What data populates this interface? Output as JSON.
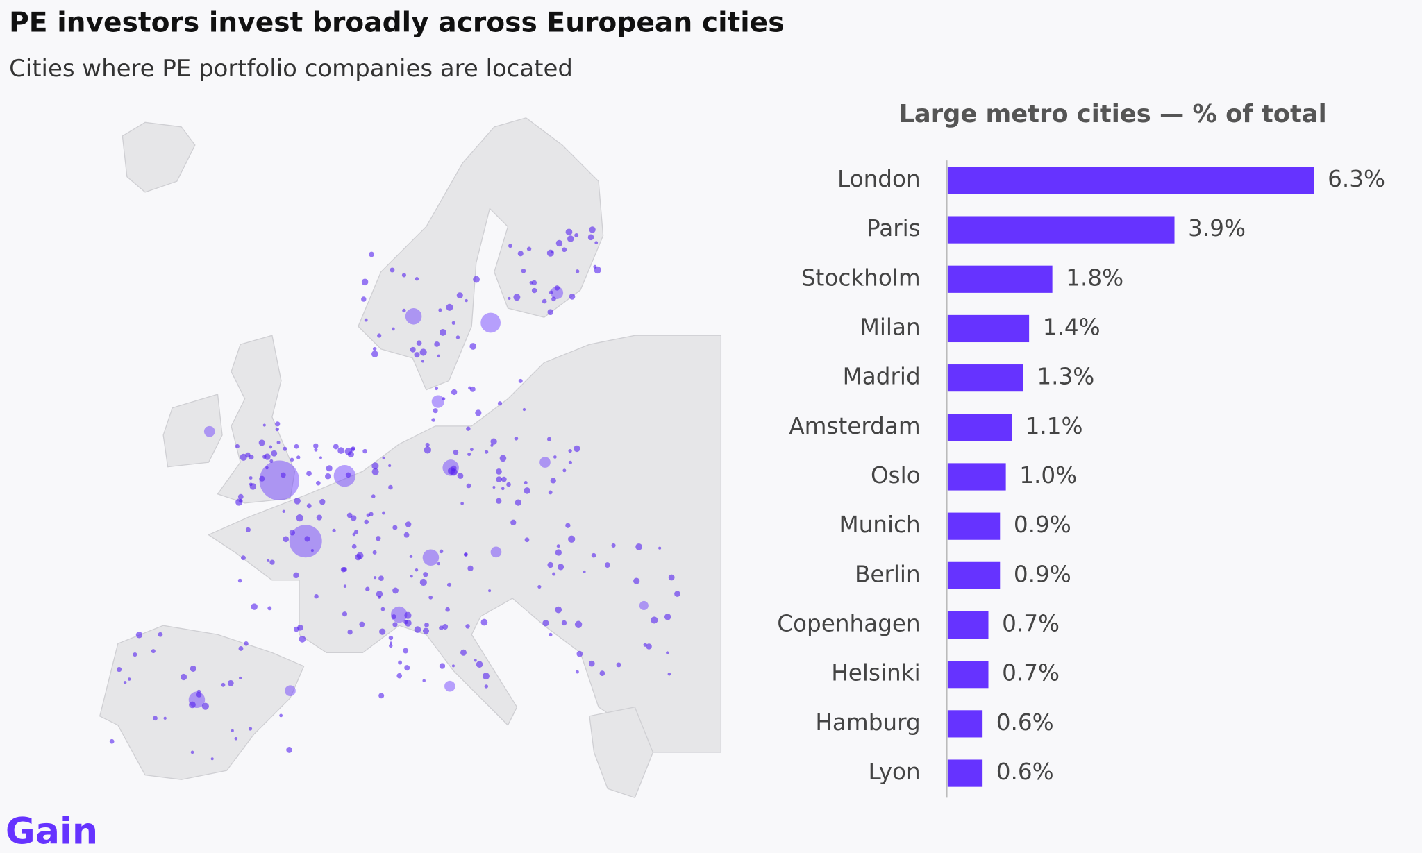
{
  "title": "PE investors invest broadly across European cities",
  "subtitle": "Cities where PE portfolio companies are located",
  "logo": "Gain",
  "chart_data": {
    "type": "bar",
    "orientation": "horizontal",
    "title": "Large metro cities — % of total",
    "categories": [
      "London",
      "Paris",
      "Stockholm",
      "Milan",
      "Madrid",
      "Amsterdam",
      "Oslo",
      "Munich",
      "Berlin",
      "Copenhagen",
      "Helsinki",
      "Hamburg",
      "Lyon"
    ],
    "values": [
      6.3,
      3.9,
      1.8,
      1.4,
      1.3,
      1.1,
      1.0,
      0.9,
      0.9,
      0.7,
      0.7,
      0.6,
      0.6
    ],
    "value_labels": [
      "6.3%",
      "3.9%",
      "1.8%",
      "1.4%",
      "1.3%",
      "1.1%",
      "1.0%",
      "0.9%",
      "0.9%",
      "0.7%",
      "0.7%",
      "0.6%",
      "0.6%"
    ],
    "color": "#6633ff"
  }
}
